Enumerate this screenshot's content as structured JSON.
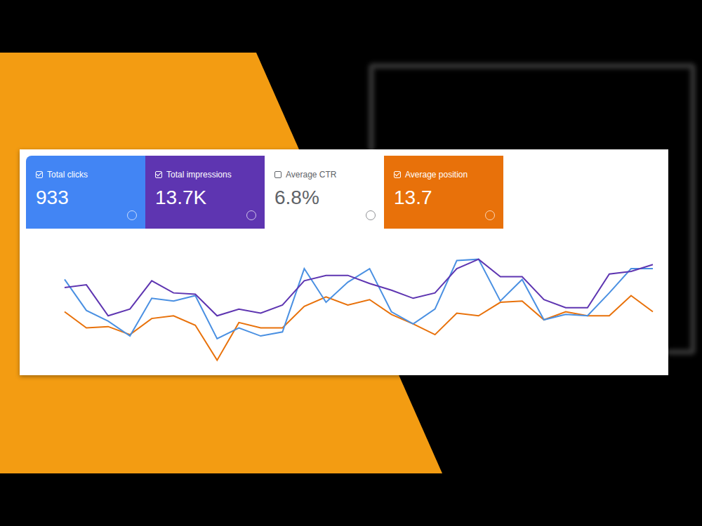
{
  "metrics": [
    {
      "label": "Total clicks",
      "value": "933",
      "checked": true,
      "color": "#4285f4"
    },
    {
      "label": "Total impressions",
      "value": "13.7K",
      "checked": true,
      "color": "#5e35b1"
    },
    {
      "label": "Average CTR",
      "value": "6.8%",
      "checked": false,
      "color": "#ffffff"
    },
    {
      "label": "Average position",
      "value": "13.7",
      "checked": true,
      "color": "#e8710a"
    }
  ],
  "chart_data": {
    "type": "line",
    "categories": [
      null,
      null,
      null,
      null,
      null,
      null,
      null,
      null,
      null,
      null,
      null,
      null,
      null,
      null,
      null,
      null,
      null,
      null,
      null,
      null,
      null,
      null,
      null,
      null,
      null,
      null,
      null,
      null
    ],
    "series": [
      {
        "name": "Total impressions",
        "color": "#5e35b1",
        "values": [
          62,
          64,
          41,
          46,
          67,
          58,
          57,
          41,
          46,
          43,
          49,
          67,
          71,
          71,
          65,
          60,
          54,
          58,
          76,
          83,
          70,
          70,
          53,
          47,
          47,
          72,
          74,
          79
        ]
      },
      {
        "name": "Total clicks",
        "color": "#4a90e2",
        "values": [
          68,
          45,
          37,
          26,
          54,
          52,
          56,
          24,
          32,
          26,
          29,
          76,
          51,
          66,
          76,
          44,
          35,
          46,
          82,
          83,
          52,
          68,
          38,
          42,
          41,
          58,
          76,
          76
        ]
      },
      {
        "name": "Average position",
        "color": "#e8710a",
        "values": [
          44,
          32,
          33,
          27,
          39,
          41,
          34,
          8,
          36,
          32,
          32,
          48,
          55,
          49,
          53,
          42,
          35,
          27,
          43,
          41,
          51,
          52,
          38,
          44,
          41,
          41,
          56,
          44
        ]
      }
    ],
    "ylim": [
      0,
      100
    ],
    "grid": false,
    "tick_labels": false
  }
}
